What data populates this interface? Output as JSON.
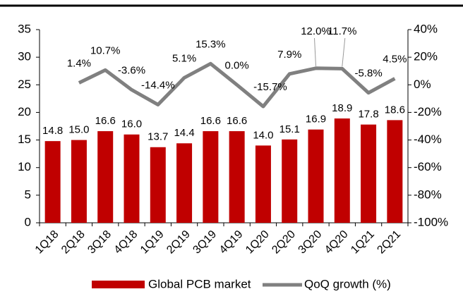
{
  "chart_data": {
    "type": "bar",
    "categories": [
      "1Q18",
      "2Q18",
      "3Q18",
      "4Q18",
      "1Q19",
      "2Q19",
      "3Q19",
      "4Q19",
      "1Q20",
      "2Q20",
      "3Q20",
      "4Q20",
      "1Q21",
      "2Q21"
    ],
    "series": [
      {
        "name": "Global PCB market",
        "type": "bar",
        "color": "#c00000",
        "values": [
          14.8,
          15.0,
          16.6,
          16.0,
          13.7,
          14.4,
          16.6,
          16.6,
          14.0,
          15.1,
          16.9,
          18.9,
          17.8,
          18.6
        ],
        "value_labels": [
          "14.8",
          "15.0",
          "16.6",
          "16.0",
          "13.7",
          "14.4",
          "16.6",
          "16.6",
          "14.0",
          "15.1",
          "16.9",
          "18.9",
          "17.8",
          "18.6"
        ]
      },
      {
        "name": "QoQ growth (%)",
        "type": "line",
        "axis": "y2",
        "color": "#808080",
        "values": [
          null,
          1.4,
          10.7,
          -3.6,
          -14.4,
          5.1,
          15.3,
          0.0,
          -15.7,
          7.9,
          12.0,
          11.7,
          -5.8,
          4.5
        ],
        "value_labels": [
          null,
          "1.4%",
          "10.7%",
          "-3.6%",
          "-14.4%",
          "5.1%",
          "15.3%",
          "0.0%",
          "-15.7%",
          "7.9%",
          "12.0%",
          "11.7%",
          "-5.8%",
          "4.5%"
        ]
      }
    ],
    "ylim": [
      0,
      35
    ],
    "yticks": [
      0,
      5,
      10,
      15,
      20,
      25,
      30,
      35
    ],
    "y2lim": [
      -100,
      40
    ],
    "y2ticks": [
      {
        "value": -100,
        "label": "-100%"
      },
      {
        "value": -80,
        "label": "-80%"
      },
      {
        "value": -60,
        "label": "-60%"
      },
      {
        "value": -40,
        "label": "-40%"
      },
      {
        "value": -20,
        "label": "-20%"
      },
      {
        "value": 0,
        "label": "0%"
      },
      {
        "value": 20,
        "label": "20%"
      },
      {
        "value": 40,
        "label": "40%"
      }
    ],
    "legend": "bottom"
  }
}
